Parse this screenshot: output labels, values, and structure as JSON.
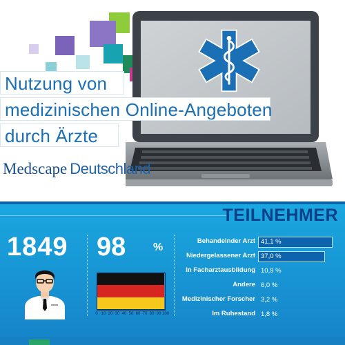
{
  "header": {
    "title_lines": [
      "Nutzung von",
      "medizinischen Online-Angeboten",
      "durch Ärzte"
    ],
    "brand_medscape": "Medscape",
    "brand_region": "Deutschland"
  },
  "colors": {
    "accent_blue": "#1a6fb5",
    "panel_blue": "#1aa8e0",
    "dark_blue": "#0a3f8a",
    "decor_squares": [
      "#8fcc3c",
      "#18a3b0",
      "#7a63b8",
      "#1e4fa8",
      "#c9388f"
    ]
  },
  "participants": {
    "heading": "TEILNEHMER",
    "total": "1849",
    "percent_value": "98",
    "percent_sign": "%",
    "percent_fraction": 0.98,
    "axis_ticks": [
      "0",
      "10",
      "20",
      "30",
      "40",
      "50",
      "60",
      "70",
      "80",
      "90",
      "100"
    ],
    "icons": {
      "doctor": "doctor-icon",
      "flag": "germany-flag-icon",
      "laptop": "laptop-icon",
      "emblem": "star-of-life-icon"
    }
  },
  "chart_data": {
    "type": "bar",
    "categories": [
      "Behandelnder Arzt",
      "Niedergelassener Arzt",
      "In Facharztausbildung",
      "Andere",
      "Medizinischer Forscher",
      "Im Ruhestand"
    ],
    "values": [
      41.1,
      37.0,
      10.9,
      6.0,
      3.2,
      1.8
    ],
    "value_labels": [
      "41,1 %",
      "37,0 %",
      "10,9 %",
      "6,0 %",
      "3,2 %",
      "1,8 %"
    ],
    "xlim": [
      0,
      45
    ]
  }
}
